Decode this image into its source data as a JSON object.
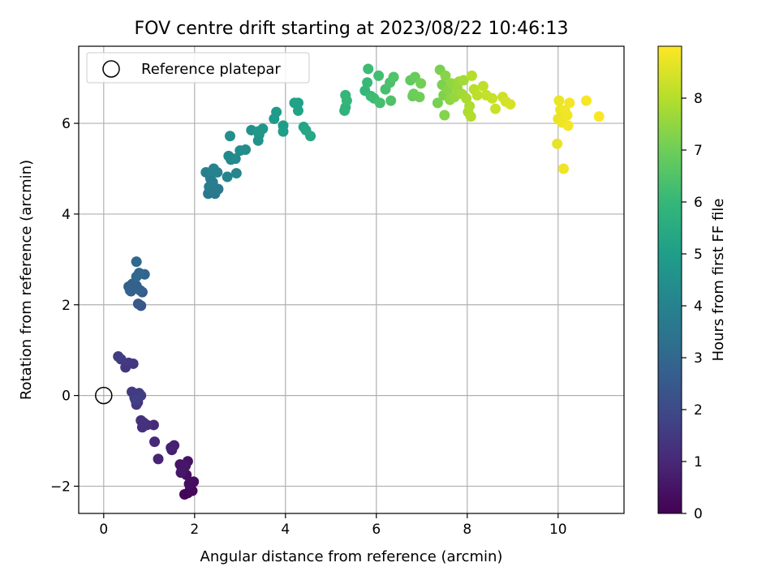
{
  "chart_data": {
    "type": "scatter",
    "title": "FOV centre drift starting at 2023/08/22 10:46:13",
    "xlabel": "Angular distance from reference (arcmin)",
    "ylabel": "Rotation from reference (arcmin)",
    "xlim": [
      -0.55,
      11.45
    ],
    "ylim": [
      -2.6,
      7.7
    ],
    "xticks": [
      0,
      2,
      4,
      6,
      8,
      10
    ],
    "yticks": [
      -2,
      0,
      2,
      4,
      6
    ],
    "xtick_labels": [
      "0",
      "2",
      "4",
      "6",
      "8",
      "10"
    ],
    "ytick_labels": [
      "−2",
      "0",
      "2",
      "4",
      "6"
    ],
    "grid": true,
    "legend": {
      "location": "upper-left",
      "entries": [
        {
          "label": "Reference platepar",
          "marker": "open-circle"
        }
      ]
    },
    "reference_point": {
      "x": 0,
      "y": 0
    },
    "colorbar": {
      "label": "Hours from first FF file",
      "colormap": "viridis",
      "range": [
        0,
        9.0
      ],
      "ticks": [
        0,
        1,
        2,
        3,
        4,
        5,
        6,
        7,
        8
      ],
      "tick_labels": [
        "0",
        "1",
        "2",
        "3",
        "4",
        "5",
        "6",
        "7",
        "8"
      ]
    },
    "points": [
      {
        "x": 1.85,
        "y": -2.15,
        "c": 0.05
      },
      {
        "x": 1.78,
        "y": -2.18,
        "c": 0.1
      },
      {
        "x": 1.95,
        "y": -2.1,
        "c": 0.15
      },
      {
        "x": 1.9,
        "y": -2.0,
        "c": 0.2
      },
      {
        "x": 1.98,
        "y": -1.9,
        "c": 0.25
      },
      {
        "x": 1.88,
        "y": -1.95,
        "c": 0.3
      },
      {
        "x": 1.82,
        "y": -1.75,
        "c": 0.35
      },
      {
        "x": 1.72,
        "y": -1.6,
        "c": 0.4
      },
      {
        "x": 1.85,
        "y": -1.45,
        "c": 0.45
      },
      {
        "x": 1.68,
        "y": -1.52,
        "c": 0.5
      },
      {
        "x": 1.8,
        "y": -1.55,
        "c": 0.55
      },
      {
        "x": 1.7,
        "y": -1.7,
        "c": 0.6
      },
      {
        "x": 1.5,
        "y": -1.2,
        "c": 0.75
      },
      {
        "x": 1.55,
        "y": -1.1,
        "c": 0.8
      },
      {
        "x": 1.48,
        "y": -1.15,
        "c": 0.85
      },
      {
        "x": 1.2,
        "y": -1.4,
        "c": 0.9
      },
      {
        "x": 1.12,
        "y": -1.02,
        "c": 1.0
      },
      {
        "x": 1.1,
        "y": -0.65,
        "c": 1.1
      },
      {
        "x": 0.95,
        "y": -0.65,
        "c": 1.15
      },
      {
        "x": 0.85,
        "y": -0.7,
        "c": 1.2
      },
      {
        "x": 0.88,
        "y": -0.6,
        "c": 1.25
      },
      {
        "x": 0.82,
        "y": -0.55,
        "c": 1.3
      },
      {
        "x": 0.75,
        "y": -0.15,
        "c": 1.4
      },
      {
        "x": 0.72,
        "y": -0.2,
        "c": 1.45
      },
      {
        "x": 0.68,
        "y": -0.05,
        "c": 1.5
      },
      {
        "x": 0.62,
        "y": 0.08,
        "c": 1.55
      },
      {
        "x": 0.78,
        "y": 0.05,
        "c": 1.6
      },
      {
        "x": 0.82,
        "y": 0.0,
        "c": 1.65
      },
      {
        "x": 0.7,
        "y": -0.1,
        "c": 1.7
      },
      {
        "x": 0.48,
        "y": 0.62,
        "c": 1.4
      },
      {
        "x": 0.65,
        "y": 0.7,
        "c": 1.45
      },
      {
        "x": 0.55,
        "y": 0.72,
        "c": 1.5
      },
      {
        "x": 0.38,
        "y": 0.8,
        "c": 1.55
      },
      {
        "x": 0.32,
        "y": 0.86,
        "c": 1.6
      },
      {
        "x": 0.82,
        "y": 1.98,
        "c": 2.4
      },
      {
        "x": 0.76,
        "y": 2.02,
        "c": 2.45
      },
      {
        "x": 0.85,
        "y": 2.28,
        "c": 2.5
      },
      {
        "x": 0.6,
        "y": 2.3,
        "c": 2.55
      },
      {
        "x": 0.68,
        "y": 2.38,
        "c": 2.6
      },
      {
        "x": 0.55,
        "y": 2.4,
        "c": 2.65
      },
      {
        "x": 0.72,
        "y": 2.42,
        "c": 2.7
      },
      {
        "x": 0.63,
        "y": 2.46,
        "c": 2.75
      },
      {
        "x": 0.8,
        "y": 2.32,
        "c": 2.8
      },
      {
        "x": 0.58,
        "y": 2.32,
        "c": 2.85
      },
      {
        "x": 0.9,
        "y": 2.67,
        "c": 2.9
      },
      {
        "x": 0.78,
        "y": 2.7,
        "c": 2.95
      },
      {
        "x": 0.72,
        "y": 2.62,
        "c": 3.0
      },
      {
        "x": 0.72,
        "y": 2.95,
        "c": 3.05
      },
      {
        "x": 2.3,
        "y": 4.45,
        "c": 3.6
      },
      {
        "x": 2.45,
        "y": 4.45,
        "c": 3.65
      },
      {
        "x": 2.52,
        "y": 4.55,
        "c": 3.7
      },
      {
        "x": 2.32,
        "y": 4.6,
        "c": 3.75
      },
      {
        "x": 2.4,
        "y": 4.7,
        "c": 3.8
      },
      {
        "x": 2.35,
        "y": 4.78,
        "c": 3.85
      },
      {
        "x": 2.25,
        "y": 4.92,
        "c": 3.9
      },
      {
        "x": 2.4,
        "y": 4.95,
        "c": 3.95
      },
      {
        "x": 2.5,
        "y": 4.92,
        "c": 4.0
      },
      {
        "x": 2.42,
        "y": 5.0,
        "c": 4.05
      },
      {
        "x": 2.72,
        "y": 4.82,
        "c": 4.1
      },
      {
        "x": 2.92,
        "y": 4.9,
        "c": 4.15
      },
      {
        "x": 2.8,
        "y": 5.2,
        "c": 4.2
      },
      {
        "x": 2.75,
        "y": 5.28,
        "c": 4.25
      },
      {
        "x": 2.9,
        "y": 5.22,
        "c": 4.3
      },
      {
        "x": 3.0,
        "y": 5.4,
        "c": 4.35
      },
      {
        "x": 3.12,
        "y": 5.42,
        "c": 4.4
      },
      {
        "x": 2.78,
        "y": 5.72,
        "c": 4.45
      },
      {
        "x": 3.25,
        "y": 5.85,
        "c": 4.55
      },
      {
        "x": 3.4,
        "y": 5.62,
        "c": 4.6
      },
      {
        "x": 3.42,
        "y": 5.75,
        "c": 4.65
      },
      {
        "x": 3.5,
        "y": 5.88,
        "c": 4.7
      },
      {
        "x": 3.4,
        "y": 5.82,
        "c": 4.75
      },
      {
        "x": 3.75,
        "y": 6.1,
        "c": 4.85
      },
      {
        "x": 3.8,
        "y": 6.25,
        "c": 4.9
      },
      {
        "x": 3.95,
        "y": 5.95,
        "c": 4.95
      },
      {
        "x": 3.95,
        "y": 5.82,
        "c": 5.0
      },
      {
        "x": 4.2,
        "y": 6.45,
        "c": 5.1
      },
      {
        "x": 4.28,
        "y": 6.45,
        "c": 5.15
      },
      {
        "x": 4.28,
        "y": 6.28,
        "c": 5.2
      },
      {
        "x": 4.4,
        "y": 5.92,
        "c": 5.25
      },
      {
        "x": 4.45,
        "y": 5.85,
        "c": 5.3
      },
      {
        "x": 4.55,
        "y": 5.72,
        "c": 5.35
      },
      {
        "x": 5.3,
        "y": 6.28,
        "c": 5.8
      },
      {
        "x": 5.32,
        "y": 6.35,
        "c": 5.85
      },
      {
        "x": 5.35,
        "y": 6.5,
        "c": 5.9
      },
      {
        "x": 5.32,
        "y": 6.62,
        "c": 5.95
      },
      {
        "x": 5.75,
        "y": 6.72,
        "c": 6.0
      },
      {
        "x": 5.8,
        "y": 6.9,
        "c": 6.05
      },
      {
        "x": 5.88,
        "y": 6.6,
        "c": 6.1
      },
      {
        "x": 5.82,
        "y": 7.2,
        "c": 6.15
      },
      {
        "x": 5.95,
        "y": 6.55,
        "c": 6.2
      },
      {
        "x": 6.05,
        "y": 7.05,
        "c": 6.25
      },
      {
        "x": 6.08,
        "y": 6.45,
        "c": 6.3
      },
      {
        "x": 6.2,
        "y": 6.75,
        "c": 6.35
      },
      {
        "x": 6.3,
        "y": 6.9,
        "c": 6.4
      },
      {
        "x": 6.32,
        "y": 6.5,
        "c": 6.45
      },
      {
        "x": 6.38,
        "y": 7.02,
        "c": 6.5
      },
      {
        "x": 6.75,
        "y": 6.95,
        "c": 6.8
      },
      {
        "x": 6.8,
        "y": 6.6,
        "c": 6.85
      },
      {
        "x": 6.85,
        "y": 7.02,
        "c": 6.9
      },
      {
        "x": 6.82,
        "y": 6.65,
        "c": 6.95
      },
      {
        "x": 6.95,
        "y": 6.58,
        "c": 7.0
      },
      {
        "x": 6.98,
        "y": 6.88,
        "c": 7.05
      },
      {
        "x": 7.35,
        "y": 6.45,
        "c": 7.1
      },
      {
        "x": 7.4,
        "y": 7.18,
        "c": 7.15
      },
      {
        "x": 7.45,
        "y": 6.85,
        "c": 7.2
      },
      {
        "x": 7.48,
        "y": 6.62,
        "c": 7.25
      },
      {
        "x": 7.5,
        "y": 6.18,
        "c": 7.3
      },
      {
        "x": 7.52,
        "y": 7.05,
        "c": 7.35
      },
      {
        "x": 7.58,
        "y": 6.75,
        "c": 7.4
      },
      {
        "x": 7.62,
        "y": 6.52,
        "c": 7.45
      },
      {
        "x": 7.65,
        "y": 6.88,
        "c": 7.5
      },
      {
        "x": 7.72,
        "y": 6.58,
        "c": 7.55
      },
      {
        "x": 7.78,
        "y": 6.78,
        "c": 7.6
      },
      {
        "x": 7.82,
        "y": 6.92,
        "c": 7.65
      },
      {
        "x": 7.88,
        "y": 6.65,
        "c": 7.7
      },
      {
        "x": 7.92,
        "y": 6.95,
        "c": 7.75
      },
      {
        "x": 7.98,
        "y": 6.55,
        "c": 7.8
      },
      {
        "x": 8.02,
        "y": 6.25,
        "c": 7.85
      },
      {
        "x": 8.05,
        "y": 6.38,
        "c": 7.9
      },
      {
        "x": 8.08,
        "y": 6.15,
        "c": 7.95
      },
      {
        "x": 8.1,
        "y": 7.05,
        "c": 8.0
      },
      {
        "x": 8.15,
        "y": 6.75,
        "c": 8.05
      },
      {
        "x": 8.22,
        "y": 6.62,
        "c": 8.1
      },
      {
        "x": 8.35,
        "y": 6.82,
        "c": 8.15
      },
      {
        "x": 8.42,
        "y": 6.62,
        "c": 8.2
      },
      {
        "x": 8.55,
        "y": 6.55,
        "c": 8.25
      },
      {
        "x": 8.62,
        "y": 6.32,
        "c": 8.3
      },
      {
        "x": 8.78,
        "y": 6.58,
        "c": 8.35
      },
      {
        "x": 8.85,
        "y": 6.48,
        "c": 8.4
      },
      {
        "x": 8.95,
        "y": 6.42,
        "c": 8.45
      },
      {
        "x": 9.98,
        "y": 5.55,
        "c": 8.7
      },
      {
        "x": 10.0,
        "y": 6.1,
        "c": 8.72
      },
      {
        "x": 10.02,
        "y": 6.5,
        "c": 8.74
      },
      {
        "x": 10.05,
        "y": 6.3,
        "c": 8.76
      },
      {
        "x": 10.08,
        "y": 6.02,
        "c": 8.78
      },
      {
        "x": 10.12,
        "y": 5.0,
        "c": 8.8
      },
      {
        "x": 10.15,
        "y": 6.28,
        "c": 8.82
      },
      {
        "x": 10.2,
        "y": 6.18,
        "c": 8.84
      },
      {
        "x": 10.22,
        "y": 5.95,
        "c": 8.86
      },
      {
        "x": 10.25,
        "y": 6.45,
        "c": 8.88
      },
      {
        "x": 10.62,
        "y": 6.5,
        "c": 8.9
      },
      {
        "x": 10.9,
        "y": 6.15,
        "c": 8.95
      }
    ]
  }
}
